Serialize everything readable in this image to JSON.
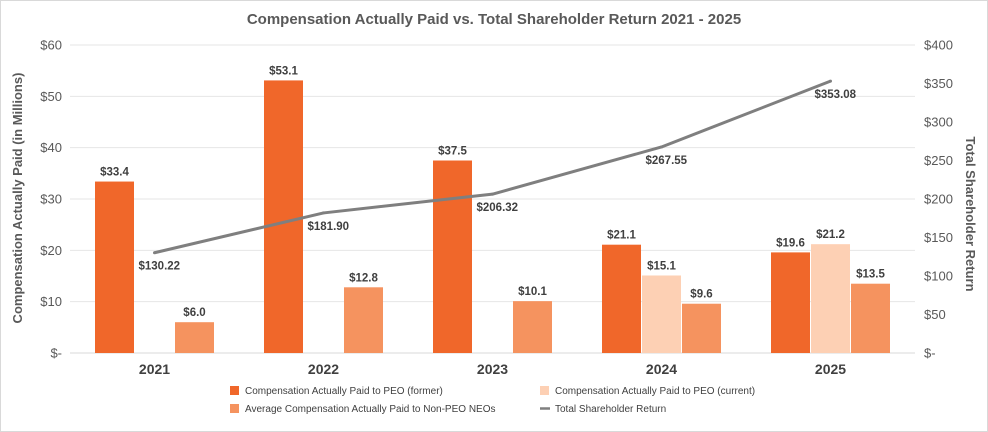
{
  "chart_data": {
    "type": "bar",
    "title": "Compensation Actually Paid vs. Total Shareholder Return 2021 - 2025",
    "categories": [
      "2021",
      "2022",
      "2023",
      "2024",
      "2025"
    ],
    "ylabel": "Compensation Actually Paid (in Millions)",
    "y2label": "Total Shareholder Return",
    "ylim": [
      0,
      60
    ],
    "y2lim": [
      0,
      400
    ],
    "yticks": [
      "$-",
      "$10",
      "$20",
      "$30",
      "$40",
      "$50",
      "$60"
    ],
    "y2ticks": [
      "$-",
      "$50",
      "$100",
      "$150",
      "$200",
      "$250",
      "$300",
      "$350",
      "$400"
    ],
    "grid": true,
    "legend_position": "bottom",
    "series": [
      {
        "name": "Compensation Actually Paid to PEO (former)",
        "kind": "bar",
        "axis": "left",
        "color": "#f0672a",
        "values": [
          33.4,
          53.1,
          37.5,
          21.1,
          19.6
        ],
        "labels": [
          "$33.4",
          "$53.1",
          "$37.5",
          "$21.1",
          "$19.6"
        ]
      },
      {
        "name": "Compensation Actually Paid to PEO (current)",
        "kind": "bar",
        "axis": "left",
        "color": "#fdd0b4",
        "values": [
          null,
          null,
          null,
          15.1,
          21.2
        ],
        "labels": [
          "",
          "",
          "",
          "$15.1",
          "$21.2"
        ]
      },
      {
        "name": "Average Compensation Actually Paid to Non-PEO NEOs",
        "kind": "bar",
        "axis": "left",
        "color": "#f5935f",
        "values": [
          6.0,
          12.8,
          10.1,
          9.6,
          13.5
        ],
        "labels": [
          "$6.0",
          "$12.8",
          "$10.1",
          "$9.6",
          "$13.5"
        ]
      },
      {
        "name": "Total Shareholder Return",
        "kind": "line",
        "axis": "right",
        "color": "#7f7f7f",
        "values": [
          130.22,
          181.9,
          206.32,
          267.55,
          353.08
        ],
        "labels": [
          "$130.22",
          "$181.90",
          "$206.32",
          "$267.55",
          "$353.08"
        ]
      }
    ]
  }
}
